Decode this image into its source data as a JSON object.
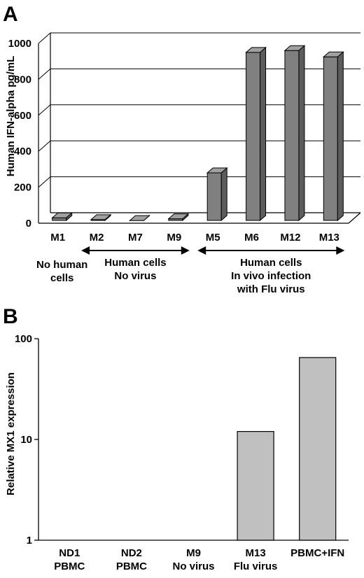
{
  "chart_data": [
    {
      "type": "bar",
      "panel": "A",
      "style": "3d",
      "ylabel": "Human IFN-alpha pg/mL",
      "ylim": [
        0,
        1000
      ],
      "yticks": [
        0,
        200,
        400,
        600,
        800,
        1000
      ],
      "grid": true,
      "categories": [
        "M1",
        "M2",
        "M7",
        "M9",
        "M5",
        "M6",
        "M12",
        "M13"
      ],
      "values": [
        30,
        20,
        15,
        25,
        280,
        950,
        960,
        925
      ],
      "bar_color": "#808080",
      "groups": [
        {
          "lines": [
            "No human",
            "cells"
          ],
          "categories": [
            "M1"
          ],
          "arrow": false
        },
        {
          "lines": [
            "Human cells",
            "No virus"
          ],
          "categories": [
            "M2",
            "M7",
            "M9"
          ],
          "arrow": true
        },
        {
          "lines": [
            "Human cells",
            "In vivo infection",
            "with Flu virus"
          ],
          "categories": [
            "M5",
            "M6",
            "M12",
            "M13"
          ],
          "arrow": true
        }
      ]
    },
    {
      "type": "bar",
      "panel": "B",
      "ylabel": "Relative MX1 expression",
      "yscale": "log",
      "ylim": [
        1,
        100
      ],
      "yticks": [
        1,
        10,
        100
      ],
      "grid": false,
      "categories": [
        {
          "lines": [
            "ND1",
            "PBMC"
          ]
        },
        {
          "lines": [
            "ND2",
            "PBMC"
          ]
        },
        {
          "lines": [
            "M9",
            "No virus"
          ]
        },
        {
          "lines": [
            "M13",
            "Flu virus"
          ]
        },
        {
          "lines": [
            "PBMC+IFN"
          ]
        }
      ],
      "values": [
        1,
        1,
        1,
        12,
        65
      ],
      "bar_color": "#c0c0c0"
    }
  ]
}
